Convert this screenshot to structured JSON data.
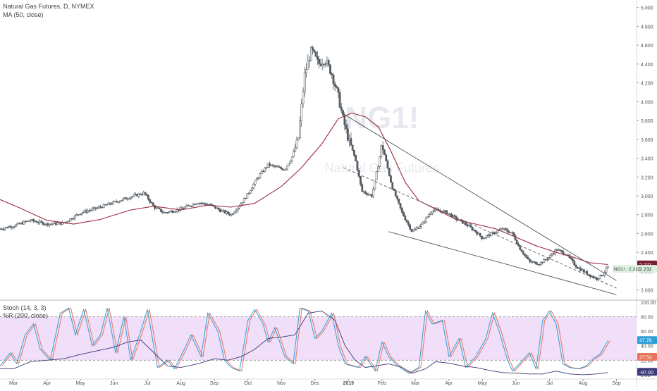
{
  "chart_data": [
    {
      "type": "candlestick",
      "title": "Natural Gas Futures, D, NYMEX",
      "indicator_label": "MA (50, close)",
      "watermark": "NG1!",
      "watermark_sub": "Natural Gas Futures",
      "y_ticks": [
        2.0,
        2.2,
        2.4,
        2.6,
        2.8,
        3.0,
        3.2,
        3.4,
        3.6,
        3.8,
        4.0,
        4.2,
        4.4,
        4.6,
        4.8,
        5.0
      ],
      "y_tick_labels": [
        "2.000",
        "2.200",
        "2.400",
        "2.600",
        "2.800",
        "3.000",
        "3.200",
        "3.400",
        "3.600",
        "3.800",
        "4.000",
        "4.200",
        "4.400",
        "4.600",
        "4.800",
        "5.000"
      ],
      "ylim": [
        1.9,
        5.05
      ],
      "x_labels": [
        "Mar",
        "Apr",
        "May",
        "Jun",
        "Jul",
        "Aug",
        "Sep",
        "Oct",
        "Nov",
        "Dec",
        "2019",
        "Feb",
        "Mar",
        "Apr",
        "May",
        "Jun",
        "Jul",
        "Aug",
        "Sep"
      ],
      "x_label_months": [
        2,
        3,
        4,
        5,
        6,
        7,
        8,
        9,
        10,
        11,
        12,
        13,
        14,
        15,
        16,
        17,
        18,
        19,
        20
      ],
      "x_range_months": [
        1.6,
        20.6
      ],
      "price_path": [
        [
          1.6,
          2.65
        ],
        [
          2.0,
          2.68
        ],
        [
          2.5,
          2.74
        ],
        [
          3.0,
          2.7
        ],
        [
          3.5,
          2.71
        ],
        [
          4.0,
          2.82
        ],
        [
          4.5,
          2.87
        ],
        [
          5.0,
          2.93
        ],
        [
          5.5,
          2.99
        ],
        [
          5.9,
          3.03
        ],
        [
          6.2,
          2.88
        ],
        [
          6.5,
          2.82
        ],
        [
          7.0,
          2.86
        ],
        [
          7.5,
          2.93
        ],
        [
          7.9,
          2.9
        ],
        [
          8.2,
          2.84
        ],
        [
          8.5,
          2.8
        ],
        [
          8.8,
          2.92
        ],
        [
          9.0,
          3.02
        ],
        [
          9.3,
          3.2
        ],
        [
          9.6,
          3.33
        ],
        [
          9.9,
          3.3
        ],
        [
          10.1,
          3.28
        ],
        [
          10.3,
          3.4
        ],
        [
          10.5,
          3.6
        ],
        [
          10.7,
          4.3
        ],
        [
          10.9,
          4.55
        ],
        [
          11.1,
          4.4
        ],
        [
          11.3,
          4.45
        ],
        [
          11.5,
          4.3
        ],
        [
          11.7,
          4.05
        ],
        [
          11.85,
          3.8
        ],
        [
          12.0,
          3.6
        ],
        [
          12.2,
          3.4
        ],
        [
          12.4,
          3.05
        ],
        [
          12.7,
          3.0
        ],
        [
          12.9,
          3.35
        ],
        [
          13.0,
          3.55
        ],
        [
          13.3,
          3.1
        ],
        [
          13.6,
          2.82
        ],
        [
          13.9,
          2.62
        ],
        [
          14.2,
          2.7
        ],
        [
          14.5,
          2.85
        ],
        [
          14.9,
          2.83
        ],
        [
          15.2,
          2.76
        ],
        [
          15.5,
          2.7
        ],
        [
          15.8,
          2.62
        ],
        [
          16.0,
          2.55
        ],
        [
          16.3,
          2.6
        ],
        [
          16.6,
          2.65
        ],
        [
          16.9,
          2.6
        ],
        [
          17.1,
          2.45
        ],
        [
          17.4,
          2.3
        ],
        [
          17.7,
          2.28
        ],
        [
          18.0,
          2.35
        ],
        [
          18.2,
          2.43
        ],
        [
          18.5,
          2.38
        ],
        [
          18.8,
          2.25
        ],
        [
          19.1,
          2.18
        ],
        [
          19.4,
          2.12
        ],
        [
          19.6,
          2.17
        ],
        [
          19.75,
          2.25
        ]
      ],
      "ma_path": [
        [
          1.6,
          2.96
        ],
        [
          2.2,
          2.87
        ],
        [
          3.0,
          2.74
        ],
        [
          3.8,
          2.7
        ],
        [
          4.6,
          2.75
        ],
        [
          5.5,
          2.85
        ],
        [
          6.2,
          2.89
        ],
        [
          7.0,
          2.85
        ],
        [
          7.8,
          2.9
        ],
        [
          8.5,
          2.88
        ],
        [
          9.2,
          2.92
        ],
        [
          10.0,
          3.1
        ],
        [
          10.6,
          3.3
        ],
        [
          11.2,
          3.55
        ],
        [
          11.7,
          3.82
        ],
        [
          12.1,
          3.88
        ],
        [
          12.5,
          3.84
        ],
        [
          12.9,
          3.73
        ],
        [
          13.3,
          3.45
        ],
        [
          13.7,
          3.14
        ],
        [
          14.1,
          2.95
        ],
        [
          14.6,
          2.86
        ],
        [
          15.2,
          2.75
        ],
        [
          15.8,
          2.7
        ],
        [
          16.4,
          2.65
        ],
        [
          17.0,
          2.56
        ],
        [
          17.6,
          2.47
        ],
        [
          18.2,
          2.4
        ],
        [
          18.7,
          2.35
        ],
        [
          19.2,
          2.29
        ],
        [
          19.75,
          2.27
        ]
      ],
      "trendlines": [
        {
          "style": "solid",
          "from": [
            11.85,
            3.87
          ],
          "to": [
            20.0,
            2.1
          ]
        },
        {
          "style": "solid",
          "from": [
            13.2,
            2.62
          ],
          "to": [
            20.0,
            1.95
          ]
        },
        {
          "style": "dashed",
          "from": [
            11.85,
            3.3
          ],
          "to": [
            20.0,
            2.02
          ]
        }
      ],
      "last_price": {
        "symbol": "NG1!",
        "value": "2.232",
        "ma_value": "2.271"
      }
    },
    {
      "type": "line",
      "title": "Stoch (14, 3, 3)",
      "title2": "%R (200, close)",
      "ylim": [
        -5,
        102
      ],
      "y_ticks": [
        0,
        20,
        40,
        60,
        80,
        100
      ],
      "y_tick_labels": [
        "0.00",
        "20.00",
        "40.00",
        "60.00",
        "80.00",
        "100.00"
      ],
      "bands": [
        80,
        20
      ],
      "stoch_path": [
        [
          1.6,
          12
        ],
        [
          1.9,
          30
        ],
        [
          2.1,
          15
        ],
        [
          2.35,
          55
        ],
        [
          2.6,
          70
        ],
        [
          2.8,
          35
        ],
        [
          3.1,
          20
        ],
        [
          3.4,
          85
        ],
        [
          3.65,
          92
        ],
        [
          3.85,
          55
        ],
        [
          4.1,
          90
        ],
        [
          4.35,
          40
        ],
        [
          4.6,
          55
        ],
        [
          4.8,
          92
        ],
        [
          5.05,
          30
        ],
        [
          5.3,
          80
        ],
        [
          5.5,
          20
        ],
        [
          5.8,
          60
        ],
        [
          6.0,
          90
        ],
        [
          6.3,
          10
        ],
        [
          6.6,
          20
        ],
        [
          6.8,
          8
        ],
        [
          7.1,
          35
        ],
        [
          7.3,
          55
        ],
        [
          7.6,
          25
        ],
        [
          7.8,
          85
        ],
        [
          8.1,
          60
        ],
        [
          8.3,
          20
        ],
        [
          8.5,
          10
        ],
        [
          8.75,
          5
        ],
        [
          9.0,
          75
        ],
        [
          9.2,
          90
        ],
        [
          9.45,
          70
        ],
        [
          9.6,
          45
        ],
        [
          9.8,
          65
        ],
        [
          10.1,
          25
        ],
        [
          10.35,
          15
        ],
        [
          10.55,
          92
        ],
        [
          10.8,
          88
        ],
        [
          11.0,
          50
        ],
        [
          11.2,
          60
        ],
        [
          11.5,
          85
        ],
        [
          11.7,
          40
        ],
        [
          11.9,
          15
        ],
        [
          12.1,
          12
        ],
        [
          12.3,
          10
        ],
        [
          12.5,
          25
        ],
        [
          12.8,
          5
        ],
        [
          13.0,
          45
        ],
        [
          13.2,
          25
        ],
        [
          13.4,
          15
        ],
        [
          13.6,
          8
        ],
        [
          13.8,
          2
        ],
        [
          14.1,
          10
        ],
        [
          14.3,
          88
        ],
        [
          14.5,
          70
        ],
        [
          14.8,
          75
        ],
        [
          15.0,
          25
        ],
        [
          15.3,
          50
        ],
        [
          15.5,
          10
        ],
        [
          15.8,
          25
        ],
        [
          16.1,
          50
        ],
        [
          16.3,
          85
        ],
        [
          16.5,
          60
        ],
        [
          16.75,
          20
        ],
        [
          16.9,
          5
        ],
        [
          17.1,
          15
        ],
        [
          17.4,
          30
        ],
        [
          17.6,
          8
        ],
        [
          17.8,
          75
        ],
        [
          18.0,
          88
        ],
        [
          18.2,
          70
        ],
        [
          18.4,
          15
        ],
        [
          18.6,
          10
        ],
        [
          18.85,
          8
        ],
        [
          19.1,
          12
        ],
        [
          19.3,
          22
        ],
        [
          19.5,
          28
        ],
        [
          19.75,
          47
        ]
      ],
      "williams_path": [
        [
          1.6,
          8
        ],
        [
          2.0,
          8
        ],
        [
          2.5,
          18
        ],
        [
          3.0,
          20
        ],
        [
          3.5,
          22
        ],
        [
          4.0,
          28
        ],
        [
          4.5,
          33
        ],
        [
          5.0,
          38
        ],
        [
          5.4,
          45
        ],
        [
          5.8,
          48
        ],
        [
          6.2,
          30
        ],
        [
          6.6,
          12
        ],
        [
          7.0,
          10
        ],
        [
          7.5,
          15
        ],
        [
          8.0,
          22
        ],
        [
          8.4,
          20
        ],
        [
          8.8,
          25
        ],
        [
          9.2,
          35
        ],
        [
          9.6,
          50
        ],
        [
          10.0,
          52
        ],
        [
          10.4,
          55
        ],
        [
          10.8,
          85
        ],
        [
          11.2,
          88
        ],
        [
          11.6,
          75
        ],
        [
          11.9,
          40
        ],
        [
          12.2,
          20
        ],
        [
          12.5,
          10
        ],
        [
          12.8,
          12
        ],
        [
          13.2,
          15
        ],
        [
          13.6,
          10
        ],
        [
          13.9,
          2
        ],
        [
          14.3,
          8
        ],
        [
          14.6,
          18
        ],
        [
          15.0,
          16
        ],
        [
          15.4,
          12
        ],
        [
          15.8,
          10
        ],
        [
          16.2,
          6
        ],
        [
          16.6,
          3
        ],
        [
          17.0,
          2
        ],
        [
          17.4,
          1
        ],
        [
          17.8,
          1
        ],
        [
          18.2,
          5
        ],
        [
          18.6,
          1
        ],
        [
          19.0,
          0
        ],
        [
          19.4,
          1
        ],
        [
          19.75,
          3
        ]
      ],
      "badges": [
        "47.78",
        "27.54",
        "-97.00"
      ]
    }
  ],
  "colors": {
    "price": "#535b63",
    "ma": "#9c2a3e",
    "stoch_k": "#2e9fd6",
    "stoch_d": "#e8755a",
    "williams": "#3b3a7a",
    "band_fill": "#f1def9",
    "ma_badge_bg": "#7a1f2f",
    "price_badge_bg": "#dcf0e0",
    "watermark": "#e6e9ef"
  }
}
